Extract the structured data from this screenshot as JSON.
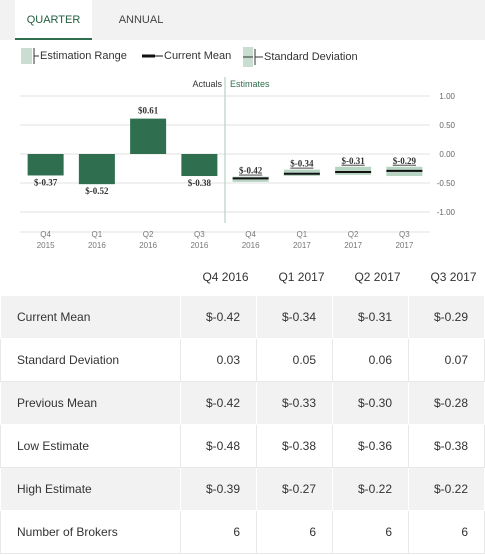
{
  "tabs": [
    {
      "label": "QUARTER",
      "active": true
    },
    {
      "label": "ANNUAL",
      "active": false
    }
  ],
  "legend": {
    "estimation_range": "Estimation Range",
    "current_mean": "Current Mean",
    "standard_deviation": "Standard Deviation"
  },
  "colors": {
    "actual_bar": "#2f6f4f",
    "estimate_mean": "#111111",
    "estimate_range": "#b7d3c2",
    "accent": "#1f5e3f",
    "divider": "#b9d3c3",
    "grid": "#e2e2e2"
  },
  "chart_data": {
    "type": "bar",
    "sections": {
      "actuals": "Actuals",
      "estimates": "Estimates"
    },
    "categories": [
      {
        "quarter": "Q4",
        "year": "2015"
      },
      {
        "quarter": "Q1",
        "year": "2016"
      },
      {
        "quarter": "Q2",
        "year": "2016"
      },
      {
        "quarter": "Q3",
        "year": "2016"
      },
      {
        "quarter": "Q4",
        "year": "2016"
      },
      {
        "quarter": "Q1",
        "year": "2017"
      },
      {
        "quarter": "Q2",
        "year": "2017"
      },
      {
        "quarter": "Q3",
        "year": "2017"
      }
    ],
    "actuals": [
      {
        "value": -0.37,
        "label": "$-0.37"
      },
      {
        "value": -0.52,
        "label": "$-0.52"
      },
      {
        "value": 0.61,
        "label": "$0.61"
      },
      {
        "value": -0.38,
        "label": "$-0.38"
      }
    ],
    "estimates": [
      {
        "mean": -0.42,
        "low": -0.48,
        "high": -0.39,
        "label": "$-0.42"
      },
      {
        "mean": -0.34,
        "low": -0.38,
        "high": -0.27,
        "label": "$-0.34"
      },
      {
        "mean": -0.31,
        "low": -0.36,
        "high": -0.22,
        "label": "$-0.31"
      },
      {
        "mean": -0.29,
        "low": -0.38,
        "high": -0.22,
        "label": "$-0.29"
      }
    ],
    "y_ticks": [
      {
        "value": 1.0,
        "label": "1.00"
      },
      {
        "value": 0.5,
        "label": "0.50"
      },
      {
        "value": 0.0,
        "label": "0.00"
      },
      {
        "value": -0.5,
        "label": "-0.50"
      },
      {
        "value": -1.0,
        "label": "-1.00"
      }
    ],
    "ylim": [
      -1.0,
      1.0
    ],
    "grid": true
  },
  "table": {
    "columns": [
      "Q4 2016",
      "Q1 2017",
      "Q2 2017",
      "Q3 2017"
    ],
    "rows": [
      {
        "label": "Current Mean",
        "values": [
          "$-0.42",
          "$-0.34",
          "$-0.31",
          "$-0.29"
        ]
      },
      {
        "label": "Standard Deviation",
        "values": [
          "0.03",
          "0.05",
          "0.06",
          "0.07"
        ]
      },
      {
        "label": "Previous Mean",
        "values": [
          "$-0.42",
          "$-0.33",
          "$-0.30",
          "$-0.28"
        ]
      },
      {
        "label": "Low Estimate",
        "values": [
          "$-0.48",
          "$-0.38",
          "$-0.36",
          "$-0.38"
        ]
      },
      {
        "label": "High Estimate",
        "values": [
          "$-0.39",
          "$-0.27",
          "$-0.22",
          "$-0.22"
        ]
      },
      {
        "label": "Number of Brokers",
        "values": [
          "6",
          "6",
          "6",
          "6"
        ]
      }
    ]
  }
}
